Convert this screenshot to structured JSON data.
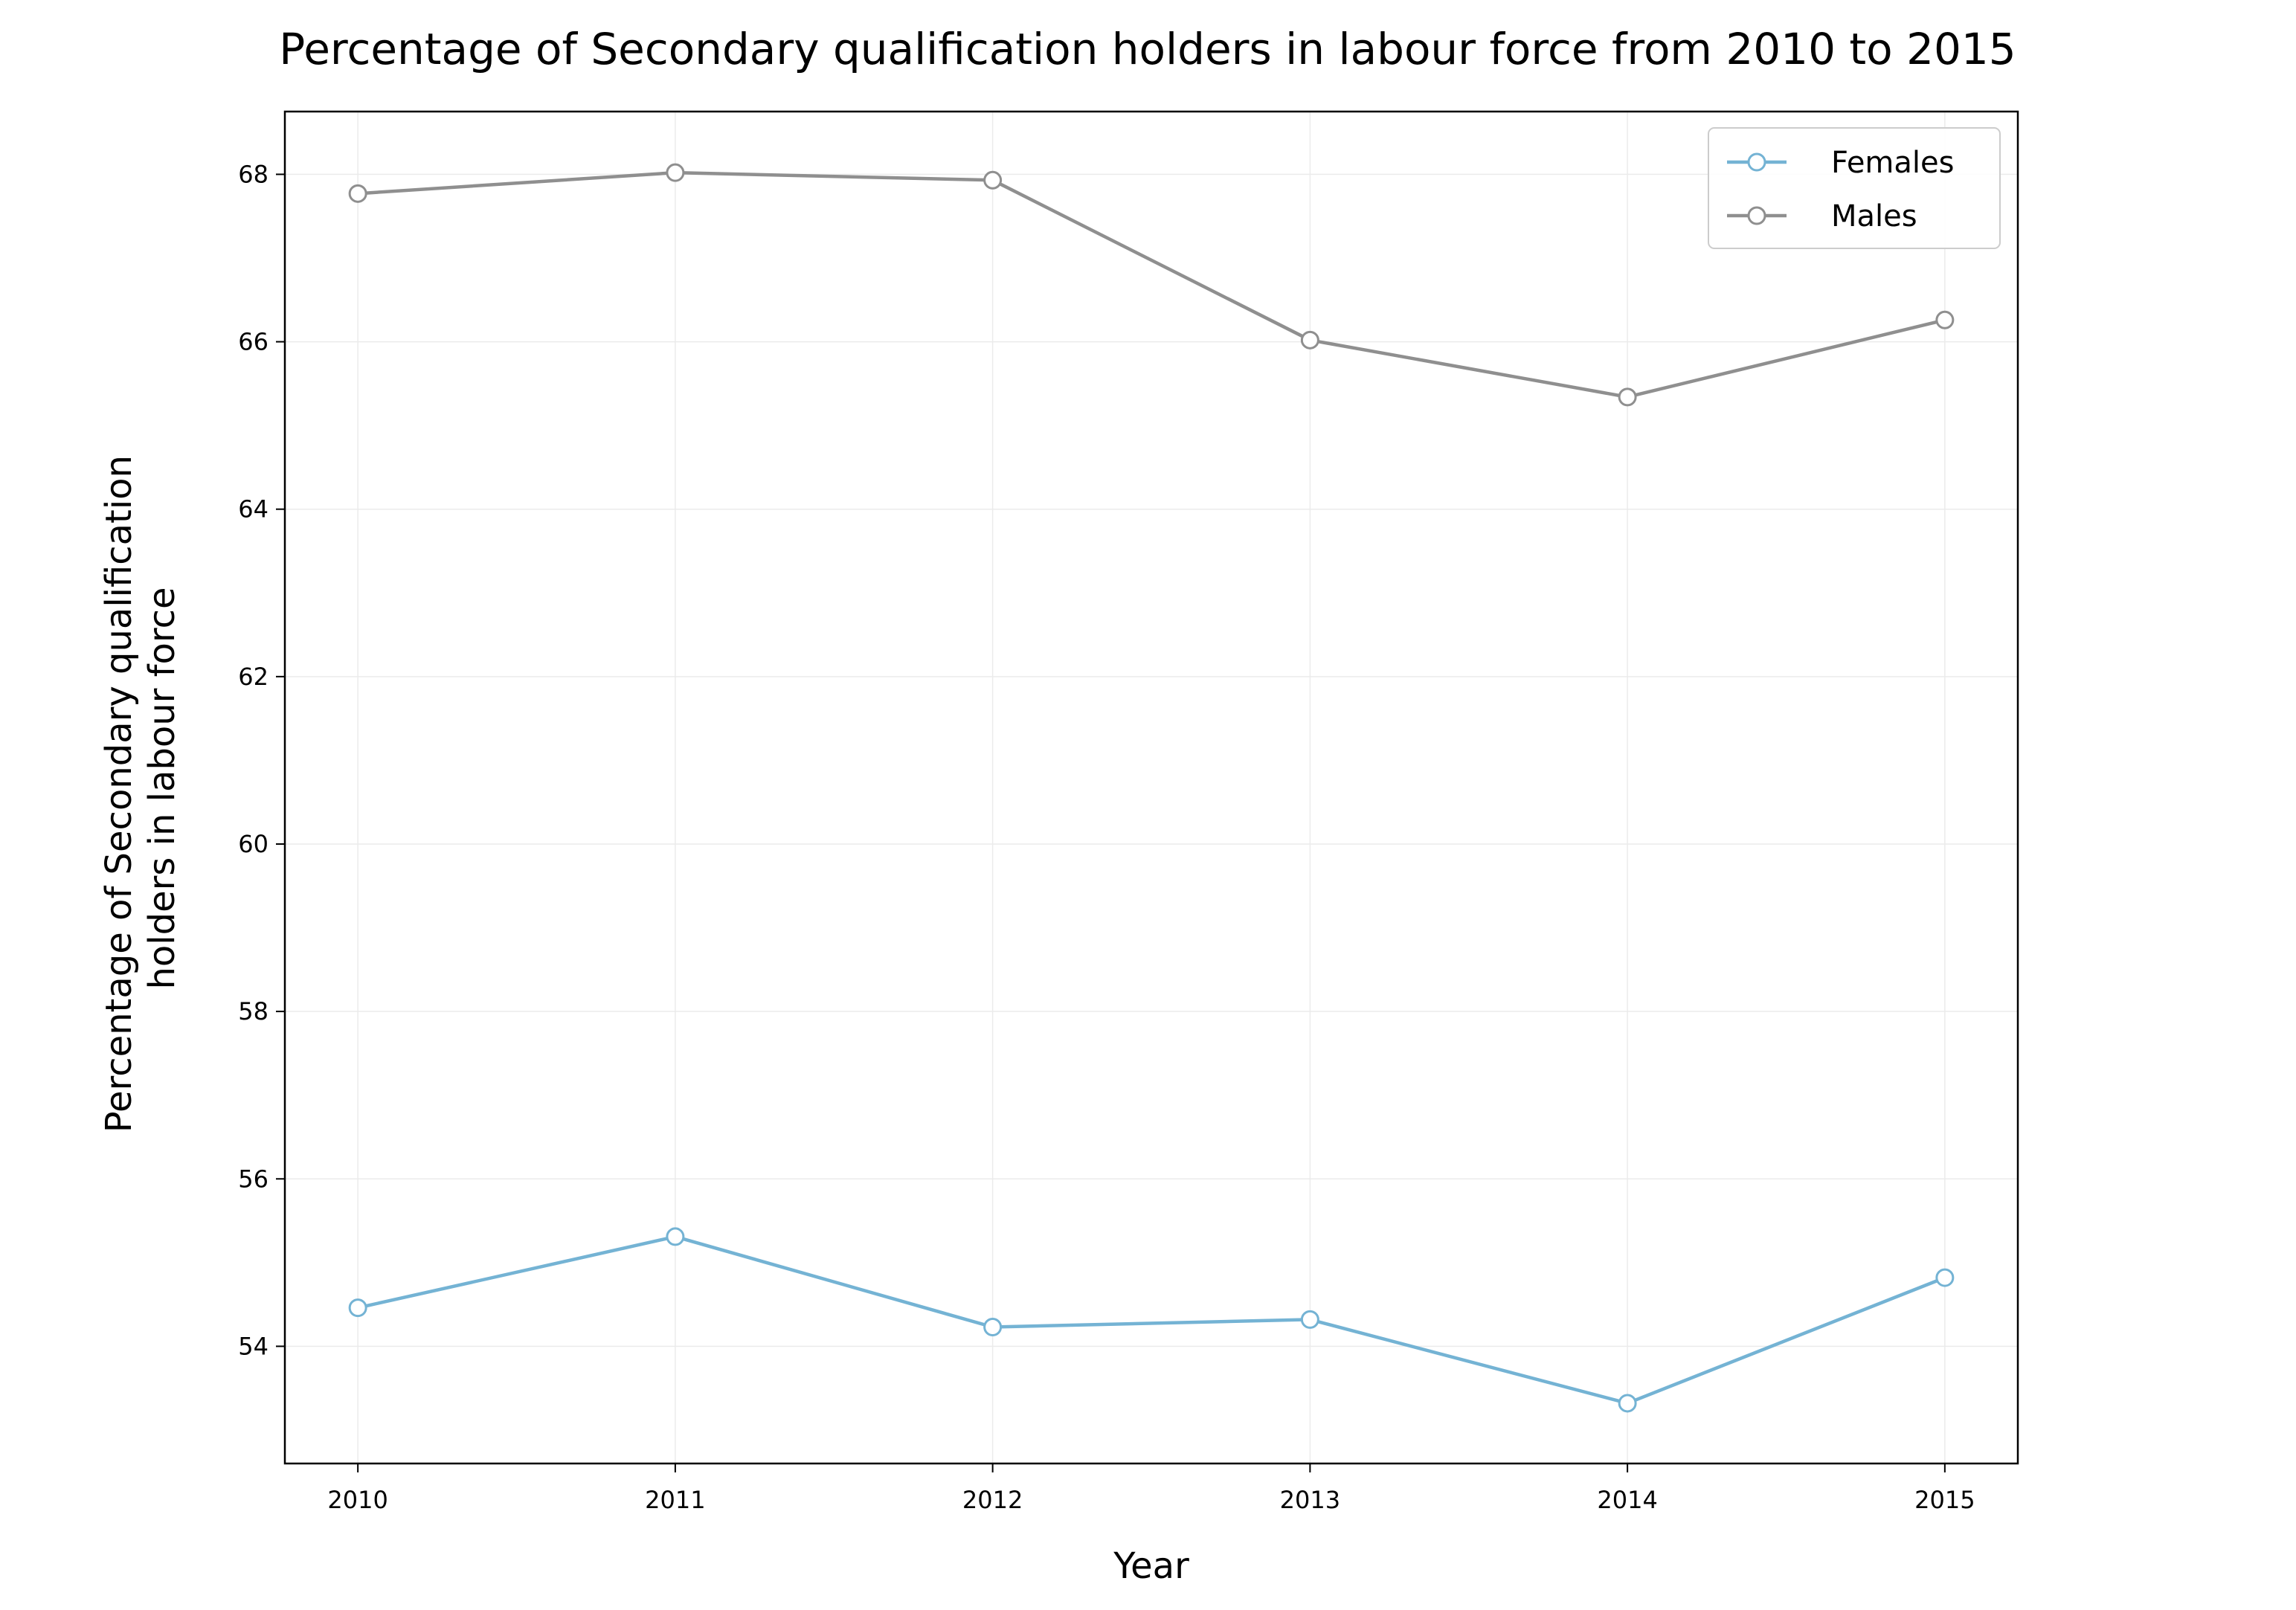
{
  "chart_data": {
    "type": "line",
    "title": "Percentage of Secondary qualification holders in labour force from 2010 to 2015",
    "xlabel": "Year",
    "ylabel_lines": [
      "Percentage of Secondary qualification",
      "holders in labour force"
    ],
    "x": [
      2010,
      2011,
      2012,
      2013,
      2014,
      2015
    ],
    "x_tick_labels": [
      "2010",
      "2011",
      "2012",
      "2013",
      "2014",
      "2015"
    ],
    "xlim": [
      2009.77,
      2015.23
    ],
    "ylim": [
      52.6,
      68.75
    ],
    "y_ticks": [
      54,
      56,
      58,
      60,
      62,
      64,
      66,
      68
    ],
    "y_tick_labels": [
      "54",
      "56",
      "58",
      "60",
      "62",
      "64",
      "66",
      "68"
    ],
    "grid": true,
    "legend_position": "top-right",
    "series": [
      {
        "name": "Females",
        "color": "#74b3d4",
        "marker": "hollow-circle",
        "values": [
          54.46,
          55.31,
          54.23,
          54.32,
          53.32,
          54.82
        ]
      },
      {
        "name": "Males",
        "color": "#8f8f8f",
        "marker": "hollow-circle",
        "values": [
          67.77,
          68.02,
          67.93,
          66.02,
          65.34,
          66.26
        ]
      }
    ]
  }
}
